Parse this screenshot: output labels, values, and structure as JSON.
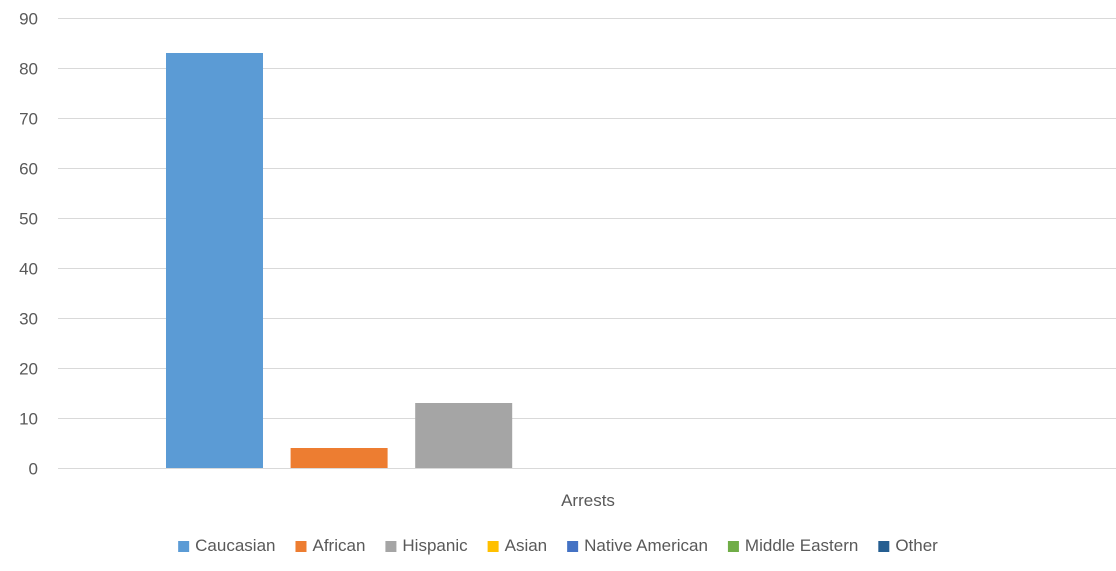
{
  "chart_data": {
    "type": "bar",
    "categories": [
      "Arrests"
    ],
    "series": [
      {
        "name": "Caucasian",
        "values": [
          83
        ],
        "color": "#5b9bd5"
      },
      {
        "name": "African",
        "values": [
          4
        ],
        "color": "#ed7d31"
      },
      {
        "name": "Hispanic",
        "values": [
          13
        ],
        "color": "#a5a5a5"
      },
      {
        "name": "Asian",
        "values": [
          0
        ],
        "color": "#ffc000"
      },
      {
        "name": "Native American",
        "values": [
          0
        ],
        "color": "#4472c4"
      },
      {
        "name": "Middle Eastern",
        "values": [
          0
        ],
        "color": "#70ad47"
      },
      {
        "name": "Other",
        "values": [
          0
        ],
        "color": "#255e91"
      }
    ],
    "ylim": [
      0,
      90
    ],
    "yticks": [
      "0",
      "10",
      "20",
      "30",
      "40",
      "50",
      "60",
      "70",
      "80",
      "90"
    ],
    "grid": true,
    "legend_position": "bottom"
  }
}
